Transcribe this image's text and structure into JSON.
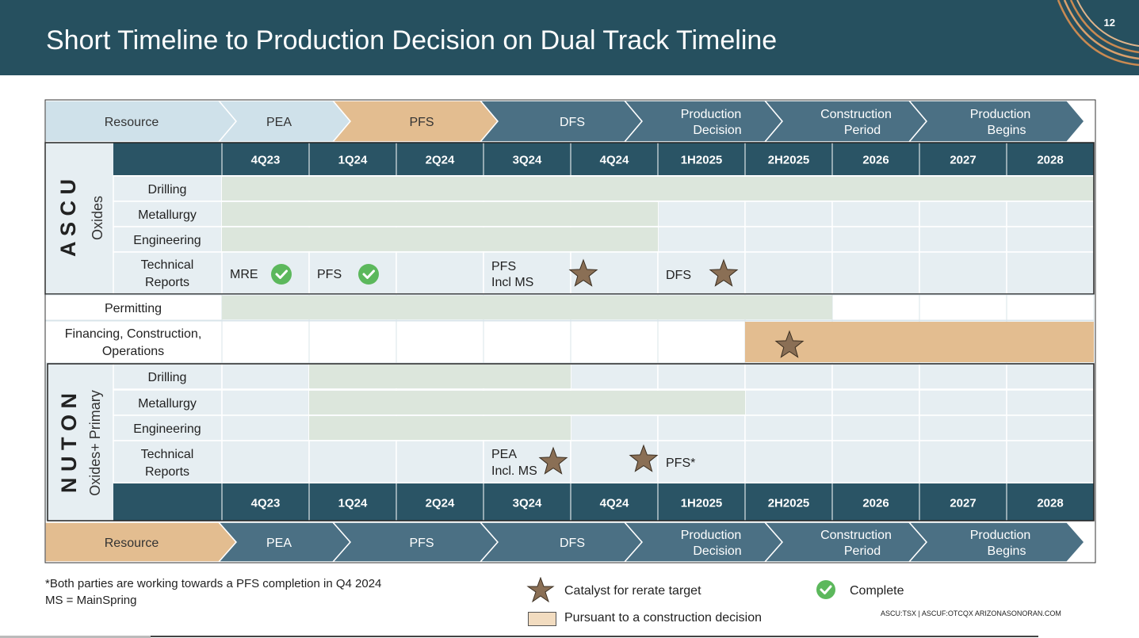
{
  "slide": {
    "title": "Short Timeline to Production Decision on Dual Track Timeline",
    "page_number": "12"
  },
  "colors": {
    "header_bg": "#26505f",
    "dark_cell": "#2a5465",
    "light_cell": "#e6eef2",
    "green_fill": "#dce6dc",
    "tan_fill": "#e3bd90",
    "arrow_light": "#cfe1ea",
    "arrow_tan": "#e3bd90",
    "arrow_dark": "#4b7084",
    "star": "#8a6f55",
    "check": "#5cb85c"
  },
  "phases_top": [
    "Resource",
    "PEA",
    "PFS",
    "DFS",
    "Production Decision",
    "Construction Period",
    "Production Begins"
  ],
  "phases_bottom": [
    "Resource",
    "PEA",
    "PFS",
    "DFS",
    "Production Decision",
    "Construction Period",
    "Production Begins"
  ],
  "periods": [
    "4Q23",
    "1Q24",
    "2Q24",
    "3Q24",
    "4Q24",
    "1H2025",
    "2H2025",
    "2026",
    "2027",
    "2028"
  ],
  "ascu": {
    "vertical_label": "A S C U",
    "sub_label": "Oxides",
    "rows": [
      "Drilling",
      "Metallurgy",
      "Engineering",
      "Technical Reports"
    ],
    "technical_reports": {
      "mre": "MRE",
      "pfs": "PFS",
      "pfs_incl_ms_1": "PFS",
      "pfs_incl_ms_2": "Incl MS",
      "dfs": "DFS"
    }
  },
  "middle": {
    "permitting": "Permitting",
    "financing": "Financing, Construction, Operations"
  },
  "nuton": {
    "vertical_label": "N U T O N",
    "sub_label": "Oxides+ Primary",
    "rows": [
      "Drilling",
      "Metallurgy",
      "Engineering",
      "Technical Reports"
    ],
    "technical_reports": {
      "pea_1": "PEA",
      "pea_2": "Incl. MS",
      "pfs": "PFS*"
    }
  },
  "footer": {
    "note1": "*Both parties are working towards a PFS completion in Q4 2024",
    "note2": "MS = MainSpring",
    "legend_star": "Catalyst for rerate target",
    "legend_check": "Complete",
    "legend_box": "Pursuant to a construction decision",
    "ticker": "ASCU:TSX | ASCUF:OTCQX   ARIZONASONORAN.COM"
  }
}
